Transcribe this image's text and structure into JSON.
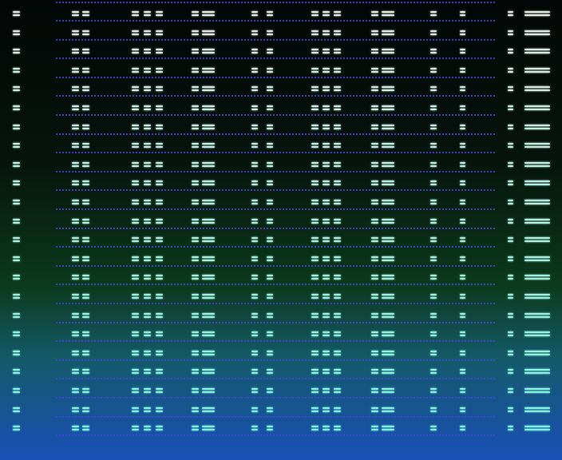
{
  "colors": {
    "background_top": "#030605",
    "background_middle": "#0c3a1c",
    "background_bottom": "#1a4fb8",
    "glyph_top": "#e8eee8",
    "glyph_bottom": "#7ff5e0",
    "separator": "#4646dc"
  },
  "glyph": "double-dash-glyph"
}
